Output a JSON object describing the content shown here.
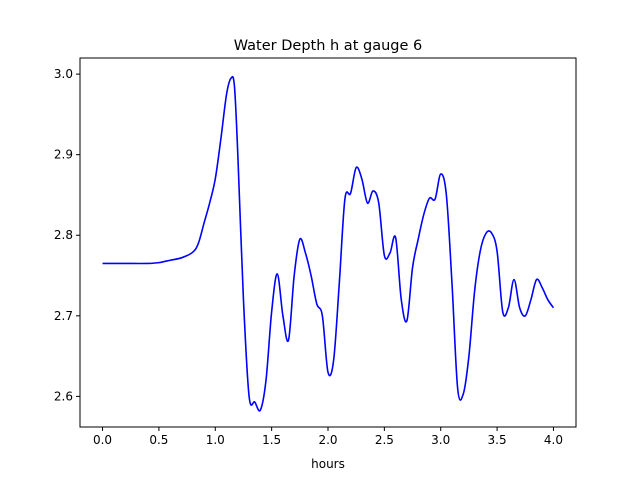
{
  "chart_data": {
    "type": "line",
    "title": "Water Depth h at gauge 6",
    "xlabel": "hours",
    "ylabel": "",
    "xlim": [
      -0.2,
      4.2
    ],
    "ylim": [
      2.562,
      3.02
    ],
    "xticks": [
      0.0,
      0.5,
      1.0,
      1.5,
      2.0,
      2.5,
      3.0,
      3.5,
      4.0
    ],
    "xtick_labels": [
      "0.0",
      "0.5",
      "1.0",
      "1.5",
      "2.0",
      "2.5",
      "3.0",
      "3.5",
      "4.0"
    ],
    "yticks": [
      2.6,
      2.7,
      2.8,
      2.9,
      3.0
    ],
    "ytick_labels": [
      "2.6",
      "2.7",
      "2.8",
      "2.9",
      "3.0"
    ],
    "grid": false,
    "series": [
      {
        "color": "#0000ff",
        "x": [
          0.0,
          0.2,
          0.4,
          0.5,
          0.6,
          0.7,
          0.8,
          0.85,
          0.9,
          0.95,
          1.0,
          1.05,
          1.1,
          1.14,
          1.17,
          1.2,
          1.25,
          1.3,
          1.35,
          1.4,
          1.45,
          1.5,
          1.55,
          1.6,
          1.65,
          1.7,
          1.75,
          1.8,
          1.85,
          1.9,
          1.95,
          2.0,
          2.05,
          2.1,
          2.15,
          2.2,
          2.25,
          2.3,
          2.35,
          2.4,
          2.45,
          2.5,
          2.55,
          2.6,
          2.65,
          2.7,
          2.75,
          2.8,
          2.85,
          2.9,
          2.95,
          3.0,
          3.05,
          3.1,
          3.15,
          3.2,
          3.25,
          3.3,
          3.35,
          3.4,
          3.45,
          3.5,
          3.55,
          3.6,
          3.65,
          3.7,
          3.75,
          3.8,
          3.85,
          3.9,
          3.95,
          4.0
        ],
        "y": [
          2.765,
          2.765,
          2.765,
          2.766,
          2.769,
          2.772,
          2.779,
          2.79,
          2.815,
          2.84,
          2.87,
          2.92,
          2.975,
          2.995,
          2.985,
          2.9,
          2.72,
          2.6,
          2.593,
          2.583,
          2.62,
          2.705,
          2.752,
          2.7,
          2.67,
          2.75,
          2.795,
          2.778,
          2.75,
          2.715,
          2.7,
          2.63,
          2.645,
          2.74,
          2.845,
          2.852,
          2.884,
          2.87,
          2.84,
          2.855,
          2.84,
          2.775,
          2.778,
          2.797,
          2.72,
          2.694,
          2.76,
          2.795,
          2.826,
          2.846,
          2.845,
          2.876,
          2.85,
          2.74,
          2.61,
          2.603,
          2.65,
          2.73,
          2.78,
          2.802,
          2.803,
          2.78,
          2.705,
          2.71,
          2.745,
          2.71,
          2.7,
          2.72,
          2.745,
          2.735,
          2.72,
          2.71
        ]
      }
    ]
  }
}
